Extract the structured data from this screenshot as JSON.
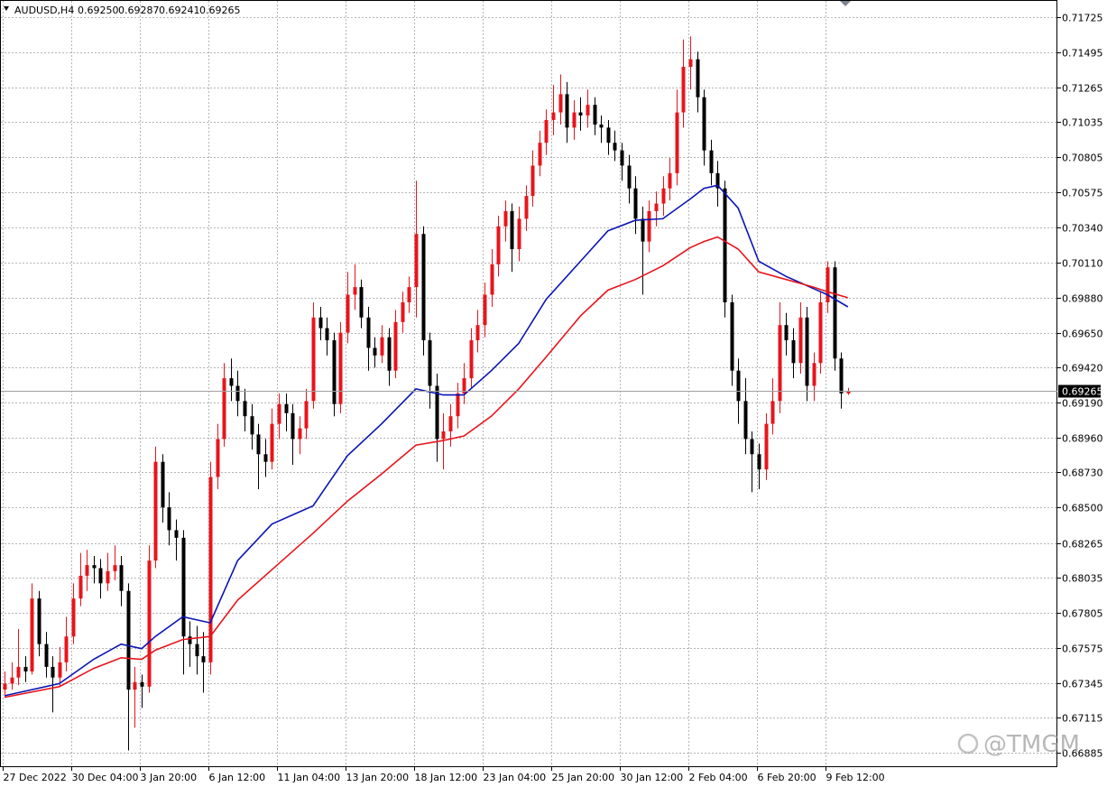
{
  "chart_data": {
    "type": "candlestick",
    "symbol": "AUDUSD,H4",
    "last_bar_labels": [
      "0.69250",
      "0.69287",
      "0.69241",
      "0.69265"
    ],
    "last_price": {
      "value": 0.69265,
      "label": "0.69265"
    },
    "watermark": "@TMGM",
    "up_color": "#e8141c",
    "down_color": "#000000",
    "grid": true,
    "ylim": [
      0.6679,
      0.7184
    ],
    "yticks": [
      0.71725,
      0.71495,
      0.71265,
      0.71035,
      0.70805,
      0.70575,
      {
        "value": 0.7034,
        "label": "0.70340"
      },
      {
        "value": 0.7011,
        "label": "0.70110"
      },
      {
        "value": 0.6988,
        "label": "0.69880"
      },
      {
        "value": 0.6965,
        "label": "0.69650"
      },
      {
        "value": 0.6942,
        "label": "0.69420"
      },
      {
        "value": 0.6919,
        "label": "0.69190"
      },
      {
        "value": 0.6896,
        "label": "0.68960"
      },
      {
        "value": 0.6873,
        "label": "0.68730"
      },
      {
        "value": 0.685,
        "label": "0.68500"
      },
      0.68265,
      0.68035,
      0.67805,
      0.67575,
      0.67345,
      0.67115,
      0.66885
    ],
    "categories": [
      "27 Dec 2022",
      null,
      null,
      null,
      null,
      null,
      null,
      null,
      null,
      null,
      "30 Dec 04:00",
      null,
      null,
      null,
      null,
      null,
      null,
      null,
      null,
      null,
      "3 Jan 20:00",
      null,
      null,
      null,
      null,
      null,
      null,
      null,
      null,
      null,
      "6 Jan 12:00",
      null,
      null,
      null,
      null,
      null,
      null,
      null,
      null,
      null,
      "11 Jan 04:00",
      null,
      null,
      null,
      null,
      null,
      null,
      null,
      null,
      null,
      "13 Jan 20:00",
      null,
      null,
      null,
      null,
      null,
      null,
      null,
      null,
      null,
      "18 Jan 12:00",
      null,
      null,
      null,
      null,
      null,
      null,
      null,
      null,
      null,
      "23 Jan 04:00",
      null,
      null,
      null,
      null,
      null,
      null,
      null,
      null,
      null,
      "25 Jan 20:00",
      null,
      null,
      null,
      null,
      null,
      null,
      null,
      null,
      null,
      "30 Jan 12:00",
      null,
      null,
      null,
      null,
      null,
      null,
      null,
      null,
      null,
      "2 Feb 04:00",
      null,
      null,
      null,
      null,
      null,
      null,
      null,
      null,
      null,
      "6 Feb 20:00",
      null,
      null,
      null,
      null,
      null,
      null,
      null,
      null,
      null,
      "9 Feb 12:00",
      null,
      null,
      null
    ],
    "ohlc": [
      [
        0.673,
        0.6742,
        0.6726,
        0.6734
      ],
      [
        0.6734,
        0.6748,
        0.673,
        0.6738
      ],
      [
        0.6738,
        0.677,
        0.6733,
        0.6745
      ],
      [
        0.6745,
        0.6752,
        0.6735,
        0.6742
      ],
      [
        0.6742,
        0.68,
        0.674,
        0.679
      ],
      [
        0.679,
        0.6795,
        0.6752,
        0.676
      ],
      [
        0.676,
        0.6768,
        0.6738,
        0.6745
      ],
      [
        0.6745,
        0.6752,
        0.6715,
        0.6738
      ],
      [
        0.6738,
        0.6758,
        0.6732,
        0.6748
      ],
      [
        0.6748,
        0.6778,
        0.6742,
        0.6765
      ],
      [
        0.6765,
        0.68,
        0.676,
        0.679
      ],
      [
        0.679,
        0.682,
        0.6785,
        0.6805
      ],
      [
        0.6805,
        0.6822,
        0.6795,
        0.6812
      ],
      [
        0.6812,
        0.6818,
        0.68,
        0.681
      ],
      [
        0.681,
        0.6816,
        0.679,
        0.68
      ],
      [
        0.68,
        0.682,
        0.6795,
        0.6808
      ],
      [
        0.6808,
        0.6825,
        0.6802,
        0.6812
      ],
      [
        0.6812,
        0.6818,
        0.6785,
        0.6795
      ],
      [
        0.6795,
        0.68,
        0.669,
        0.673
      ],
      [
        0.673,
        0.6745,
        0.6705,
        0.6735
      ],
      [
        0.6735,
        0.674,
        0.6718,
        0.6732
      ],
      [
        0.6732,
        0.6825,
        0.6728,
        0.6815
      ],
      [
        0.6815,
        0.689,
        0.681,
        0.688
      ],
      [
        0.688,
        0.6885,
        0.684,
        0.685
      ],
      [
        0.685,
        0.686,
        0.6825,
        0.6835
      ],
      [
        0.6835,
        0.6842,
        0.6815,
        0.683
      ],
      [
        0.683,
        0.6835,
        0.674,
        0.6765
      ],
      [
        0.6765,
        0.6775,
        0.6745,
        0.676
      ],
      [
        0.676,
        0.6772,
        0.674,
        0.6752
      ],
      [
        0.6752,
        0.6768,
        0.6728,
        0.6748
      ],
      [
        0.6748,
        0.688,
        0.674,
        0.687
      ],
      [
        0.687,
        0.6905,
        0.6862,
        0.6895
      ],
      [
        0.6895,
        0.6945,
        0.689,
        0.6935
      ],
      [
        0.6935,
        0.6948,
        0.692,
        0.693
      ],
      [
        0.693,
        0.694,
        0.691,
        0.692
      ],
      [
        0.692,
        0.6928,
        0.69,
        0.691
      ],
      [
        0.691,
        0.6918,
        0.6888,
        0.6898
      ],
      [
        0.6898,
        0.6905,
        0.6862,
        0.6885
      ],
      [
        0.6885,
        0.6895,
        0.687,
        0.688
      ],
      [
        0.688,
        0.6915,
        0.6875,
        0.6905
      ],
      [
        0.6905,
        0.6925,
        0.6895,
        0.6918
      ],
      [
        0.6918,
        0.6925,
        0.69,
        0.6912
      ],
      [
        0.6912,
        0.6918,
        0.6878,
        0.6895
      ],
      [
        0.6895,
        0.691,
        0.6885,
        0.6902
      ],
      [
        0.6902,
        0.6928,
        0.6895,
        0.692
      ],
      [
        0.692,
        0.6985,
        0.6915,
        0.6975
      ],
      [
        0.6975,
        0.6982,
        0.696,
        0.6968
      ],
      [
        0.6968,
        0.6975,
        0.695,
        0.696
      ],
      [
        0.696,
        0.6965,
        0.691,
        0.6918
      ],
      [
        0.6918,
        0.6972,
        0.6912,
        0.6965
      ],
      [
        0.6965,
        0.7005,
        0.6958,
        0.699
      ],
      [
        0.699,
        0.701,
        0.698,
        0.6995
      ],
      [
        0.6995,
        0.7,
        0.6968,
        0.6975
      ],
      [
        0.6975,
        0.6982,
        0.694,
        0.6955
      ],
      [
        0.6955,
        0.6962,
        0.6942,
        0.695
      ],
      [
        0.695,
        0.697,
        0.6945,
        0.6962
      ],
      [
        0.6962,
        0.6968,
        0.693,
        0.694
      ],
      [
        0.694,
        0.698,
        0.6935,
        0.6972
      ],
      [
        0.6972,
        0.6992,
        0.6965,
        0.6985
      ],
      [
        0.6985,
        0.7002,
        0.6978,
        0.6995
      ],
      [
        0.6995,
        0.7065,
        0.6975,
        0.703
      ],
      [
        0.703,
        0.7035,
        0.695,
        0.696
      ],
      [
        0.696,
        0.6965,
        0.6915,
        0.693
      ],
      [
        0.693,
        0.6938,
        0.688,
        0.6895
      ],
      [
        0.6895,
        0.6912,
        0.6875,
        0.69
      ],
      [
        0.69,
        0.6918,
        0.689,
        0.691
      ],
      [
        0.691,
        0.6932,
        0.6902,
        0.6925
      ],
      [
        0.6925,
        0.6945,
        0.6918,
        0.6935
      ],
      [
        0.6935,
        0.6968,
        0.6928,
        0.696
      ],
      [
        0.696,
        0.698,
        0.6952,
        0.697
      ],
      [
        0.697,
        0.6998,
        0.6962,
        0.699
      ],
      [
        0.699,
        0.702,
        0.6982,
        0.701
      ],
      [
        0.701,
        0.7042,
        0.7002,
        0.7035
      ],
      [
        0.7035,
        0.7052,
        0.7025,
        0.7045
      ],
      [
        0.7045,
        0.705,
        0.7005,
        0.702
      ],
      [
        0.702,
        0.7048,
        0.7012,
        0.704
      ],
      [
        0.704,
        0.7062,
        0.7032,
        0.7055
      ],
      [
        0.7055,
        0.7085,
        0.7048,
        0.7075
      ],
      [
        0.7075,
        0.7098,
        0.7068,
        0.709
      ],
      [
        0.709,
        0.7112,
        0.7082,
        0.7105
      ],
      [
        0.7105,
        0.7128,
        0.7095,
        0.711
      ],
      [
        0.711,
        0.7135,
        0.7102,
        0.7122
      ],
      [
        0.7122,
        0.713,
        0.709,
        0.71
      ],
      [
        0.71,
        0.7118,
        0.7092,
        0.711
      ],
      [
        0.711,
        0.712,
        0.7098,
        0.7108
      ],
      [
        0.7108,
        0.7125,
        0.71,
        0.7115
      ],
      [
        0.7115,
        0.712,
        0.7095,
        0.7102
      ],
      [
        0.7102,
        0.7108,
        0.709,
        0.71
      ],
      [
        0.71,
        0.7105,
        0.7082,
        0.709
      ],
      [
        0.709,
        0.7098,
        0.7078,
        0.7085
      ],
      [
        0.7085,
        0.709,
        0.7065,
        0.7075
      ],
      [
        0.7075,
        0.7082,
        0.705,
        0.706
      ],
      [
        0.706,
        0.7068,
        0.703,
        0.704
      ],
      [
        0.704,
        0.7048,
        0.699,
        0.7025
      ],
      [
        0.7025,
        0.7052,
        0.7018,
        0.7045
      ],
      [
        0.7045,
        0.7058,
        0.7035,
        0.705
      ],
      [
        0.705,
        0.7068,
        0.7042,
        0.706
      ],
      [
        0.706,
        0.708,
        0.7052,
        0.707
      ],
      [
        0.707,
        0.7125,
        0.7062,
        0.711
      ],
      [
        0.711,
        0.7158,
        0.71,
        0.714
      ],
      [
        0.714,
        0.716,
        0.7125,
        0.7145
      ],
      [
        0.7145,
        0.715,
        0.711,
        0.712
      ],
      [
        0.712,
        0.7125,
        0.7075,
        0.7085
      ],
      [
        0.7085,
        0.7092,
        0.7062,
        0.707
      ],
      [
        0.707,
        0.7078,
        0.7048,
        0.706
      ],
      [
        0.706,
        0.7065,
        0.6975,
        0.6985
      ],
      [
        0.6985,
        0.699,
        0.693,
        0.694
      ],
      [
        0.694,
        0.6948,
        0.6905,
        0.692
      ],
      [
        0.692,
        0.6935,
        0.6885,
        0.6895
      ],
      [
        0.6895,
        0.69,
        0.686,
        0.6885
      ],
      [
        0.6885,
        0.6892,
        0.6862,
        0.6875
      ],
      [
        0.6875,
        0.6912,
        0.6868,
        0.6905
      ],
      [
        0.6905,
        0.6935,
        0.6898,
        0.692
      ],
      [
        0.692,
        0.6985,
        0.6912,
        0.697
      ],
      [
        0.697,
        0.6978,
        0.695,
        0.696
      ],
      [
        0.696,
        0.6968,
        0.6935,
        0.6945
      ],
      [
        0.6945,
        0.6985,
        0.6938,
        0.6975
      ],
      [
        0.6975,
        0.6982,
        0.692,
        0.693
      ],
      [
        0.693,
        0.6952,
        0.692,
        0.6945
      ],
      [
        0.6945,
        0.6992,
        0.6938,
        0.6985
      ],
      [
        0.6985,
        0.7012,
        0.6978,
        0.7008
      ],
      [
        0.7008,
        0.7012,
        0.694,
        0.6948
      ],
      [
        0.6948,
        0.6952,
        0.6915,
        0.6925
      ],
      [
        0.6925,
        0.69287,
        0.69241,
        0.69265
      ]
    ],
    "series": [
      {
        "color": "#0a14b4",
        "x": [
          0,
          8,
          13,
          17,
          20,
          22,
          26,
          30,
          34,
          39,
          45,
          50,
          55,
          60,
          64,
          67,
          71,
          75,
          79,
          84,
          88,
          92,
          96,
          100,
          102,
          104,
          107,
          110,
          114,
          118,
          120,
          123
        ],
        "values": [
          0.6726,
          0.6734,
          0.675,
          0.676,
          0.6757,
          0.6765,
          0.6778,
          0.6774,
          0.6815,
          0.6839,
          0.6851,
          0.6884,
          0.6905,
          0.6928,
          0.6924,
          0.6924,
          0.694,
          0.6958,
          0.6987,
          0.7012,
          0.7032,
          0.7039,
          0.704,
          0.7053,
          0.706,
          0.7062,
          0.7047,
          0.7012,
          0.7002,
          0.6994,
          0.699,
          0.6982
        ]
      },
      {
        "color": "#e8141c",
        "x": [
          0,
          8,
          13,
          17,
          20,
          22,
          26,
          30,
          34,
          39,
          45,
          50,
          55,
          60,
          64,
          67,
          71,
          75,
          79,
          84,
          88,
          92,
          96,
          100,
          102,
          104,
          107,
          110,
          114,
          118,
          120,
          123
        ],
        "values": [
          0.6725,
          0.6732,
          0.6744,
          0.6751,
          0.675,
          0.6756,
          0.6763,
          0.6765,
          0.6789,
          0.6809,
          0.6833,
          0.6854,
          0.6872,
          0.6891,
          0.6894,
          0.6897,
          0.691,
          0.6928,
          0.6949,
          0.6976,
          0.6993,
          0.7,
          0.7009,
          0.7021,
          0.7025,
          0.7028,
          0.702,
          0.7005,
          0.7,
          0.6995,
          0.6992,
          0.6988
        ]
      }
    ]
  }
}
